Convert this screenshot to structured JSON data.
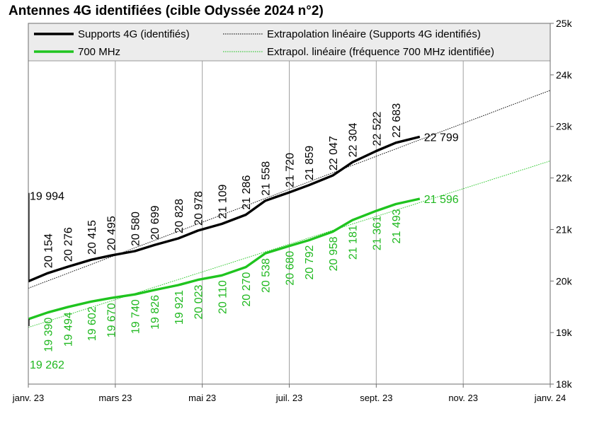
{
  "chart_data": {
    "type": "line",
    "title": "Antennes 4G identifiées (cible Odyssée 2024 n°2)",
    "xlabel": "",
    "ylabel": "",
    "x_ticks": [
      "janv. 23",
      "mars 23",
      "mai 23",
      "juil. 23",
      "sept. 23",
      "nov. 23",
      "janv. 24"
    ],
    "y_ticks": [
      "18k",
      "19k",
      "20k",
      "21k",
      "22k",
      "23k",
      "24k",
      "25k"
    ],
    "ylim": [
      18000,
      25000
    ],
    "xlim_months": [
      0,
      12
    ],
    "grid": "vertical",
    "legend_position": "top",
    "series": [
      {
        "name": "Supports 4G (identifiés)",
        "color": "#000000",
        "style": "solid",
        "points": [
          {
            "x": 0,
            "y": 19994,
            "label": "19 994"
          },
          {
            "x": 0.45,
            "y": 20154,
            "label": "20 154"
          },
          {
            "x": 0.9,
            "y": 20276,
            "label": "20 276"
          },
          {
            "x": 1.45,
            "y": 20415,
            "label": "20 415"
          },
          {
            "x": 1.9,
            "y": 20495,
            "label": "20 495"
          },
          {
            "x": 2.45,
            "y": 20580,
            "label": "20 580"
          },
          {
            "x": 2.9,
            "y": 20699,
            "label": "20 699"
          },
          {
            "x": 3.45,
            "y": 20828,
            "label": "20 828"
          },
          {
            "x": 3.9,
            "y": 20978,
            "label": "20 978"
          },
          {
            "x": 4.45,
            "y": 21109,
            "label": "21 109"
          },
          {
            "x": 5.0,
            "y": 21286,
            "label": "21 286"
          },
          {
            "x": 5.45,
            "y": 21558,
            "label": "21 558"
          },
          {
            "x": 6.0,
            "y": 21720,
            "label": "21 720"
          },
          {
            "x": 6.45,
            "y": 21859,
            "label": "21 859"
          },
          {
            "x": 7.0,
            "y": 22047,
            "label": "22 047"
          },
          {
            "x": 7.45,
            "y": 22304,
            "label": "22 304"
          },
          {
            "x": 8.0,
            "y": 22522,
            "label": "22 522"
          },
          {
            "x": 8.45,
            "y": 22683,
            "label": "22 683"
          },
          {
            "x": 9.0,
            "y": 22799,
            "label": "22 799"
          }
        ]
      },
      {
        "name": "700 MHz",
        "color": "#1fc41f",
        "style": "solid",
        "points": [
          {
            "x": 0,
            "y": 19262,
            "label": "19 262"
          },
          {
            "x": 0.45,
            "y": 19390,
            "label": "19 390"
          },
          {
            "x": 0.9,
            "y": 19494,
            "label": "19 494"
          },
          {
            "x": 1.45,
            "y": 19602,
            "label": "19 602"
          },
          {
            "x": 1.9,
            "y": 19670,
            "label": "19 670"
          },
          {
            "x": 2.45,
            "y": 19740,
            "label": "19 740"
          },
          {
            "x": 2.9,
            "y": 19826,
            "label": "19 826"
          },
          {
            "x": 3.45,
            "y": 19921,
            "label": "19 921"
          },
          {
            "x": 3.9,
            "y": 20023,
            "label": "20 023"
          },
          {
            "x": 4.45,
            "y": 20110,
            "label": "20 110"
          },
          {
            "x": 5.0,
            "y": 20270,
            "label": "20 270"
          },
          {
            "x": 5.45,
            "y": 20538,
            "label": "20 538"
          },
          {
            "x": 6.0,
            "y": 20680,
            "label": "20 680"
          },
          {
            "x": 6.45,
            "y": 20792,
            "label": "20 792"
          },
          {
            "x": 7.0,
            "y": 20958,
            "label": "20 958"
          },
          {
            "x": 7.45,
            "y": 21181,
            "label": "21 181"
          },
          {
            "x": 8.0,
            "y": 21361,
            "label": "21 361"
          },
          {
            "x": 8.45,
            "y": 21493,
            "label": "21 493"
          },
          {
            "x": 9.0,
            "y": 21596,
            "label": "21 596"
          }
        ]
      },
      {
        "name": "Extrapolation linéaire (Supports 4G identifiés)",
        "color": "#000000",
        "style": "dotted",
        "trend_from": [
          0,
          19860
        ],
        "trend_to": [
          12,
          23700
        ]
      },
      {
        "name": "Extrapol. linéaire (fréquence 700 MHz identifiée)",
        "color": "#1fc41f",
        "style": "dotted",
        "trend_from": [
          0,
          19100
        ],
        "trend_to": [
          12,
          22330
        ]
      }
    ]
  }
}
